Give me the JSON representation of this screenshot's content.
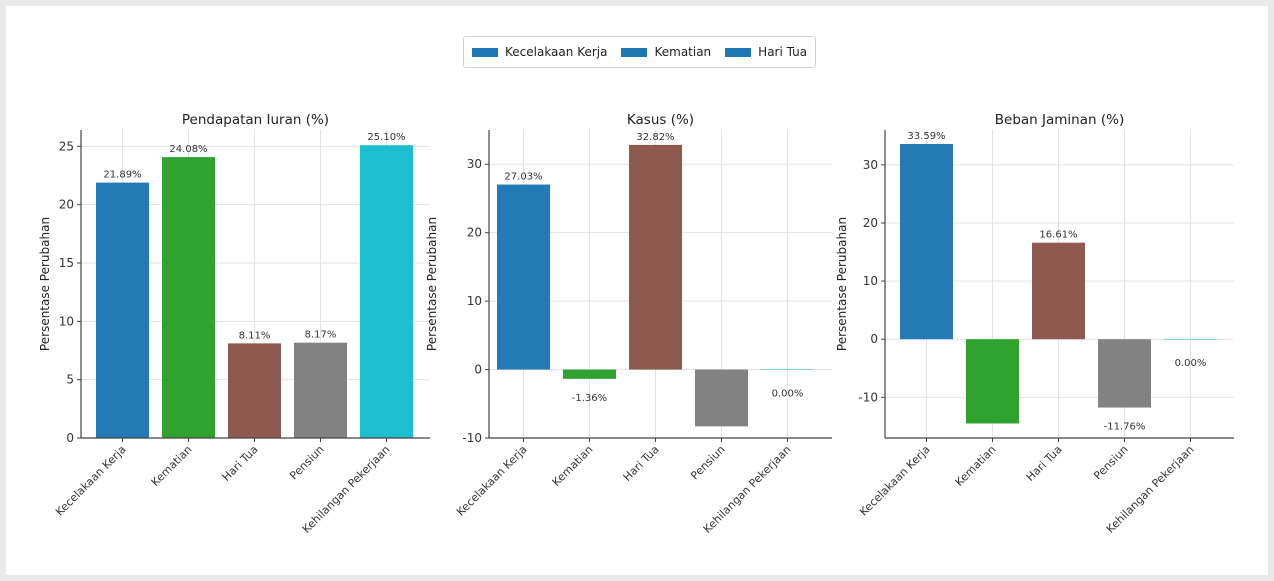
{
  "legend": {
    "items": [
      {
        "label": "Kecelakaan Kerja",
        "color": "#1f77b4"
      },
      {
        "label": "Kematian",
        "color": "#1f77b4"
      },
      {
        "label": "Hari Tua",
        "color": "#1f77b4"
      }
    ]
  },
  "chart_data": [
    {
      "type": "bar",
      "title": "Pendapatan Iuran (%)",
      "ylabel": "Persentase Perubahan",
      "xlabel": "",
      "categories": [
        "Kecelakaan Kerja",
        "Kematian",
        "Hari Tua",
        "Pensiun",
        "Kehilangan Pekerjaan"
      ],
      "values": [
        21.89,
        24.08,
        8.11,
        8.17,
        25.1
      ],
      "labels": [
        "21.89%",
        "24.08%",
        "8.11%",
        "8.17%",
        "25.10%"
      ],
      "colors": [
        "#1f77b4",
        "#2ca02c",
        "#8c564b",
        "#7f7f7f",
        "#17becf"
      ],
      "ylim": [
        0,
        26.4
      ],
      "yticks": [
        0,
        5,
        10,
        15,
        20,
        25
      ],
      "grid": true
    },
    {
      "type": "bar",
      "title": "Kasus (%)",
      "ylabel": "Persentase Perubahan",
      "xlabel": "",
      "categories": [
        "Kecelakaan Kerja",
        "Kematian",
        "Hari Tua",
        "Pensiun",
        "Kehilangan Pekerjaan"
      ],
      "values": [
        27.03,
        -1.36,
        32.82,
        -8.3,
        0.0
      ],
      "labels": [
        "27.03%",
        "-1.36%",
        "32.82%",
        "",
        "0.00%"
      ],
      "colors": [
        "#1f77b4",
        "#2ca02c",
        "#8c564b",
        "#7f7f7f",
        "#17becf"
      ],
      "ylim": [
        -10,
        35
      ],
      "yticks": [
        -10,
        0,
        10,
        20,
        30
      ],
      "grid": true
    },
    {
      "type": "bar",
      "title": "Beban Jaminan (%)",
      "ylabel": "Persentase Perubahan",
      "xlabel": "",
      "categories": [
        "Kecelakaan Kerja",
        "Kematian",
        "Hari Tua",
        "Pensiun",
        "Kehilangan Pekerjaan"
      ],
      "values": [
        33.59,
        -14.5,
        16.61,
        -11.76,
        0.0
      ],
      "labels": [
        "33.59%",
        "",
        "16.61%",
        "-11.76%",
        "0.00%"
      ],
      "colors": [
        "#1f77b4",
        "#2ca02c",
        "#8c564b",
        "#7f7f7f",
        "#17becf"
      ],
      "ylim": [
        -17,
        36
      ],
      "yticks": [
        -10,
        0,
        10,
        20,
        30
      ],
      "grid": true
    }
  ]
}
